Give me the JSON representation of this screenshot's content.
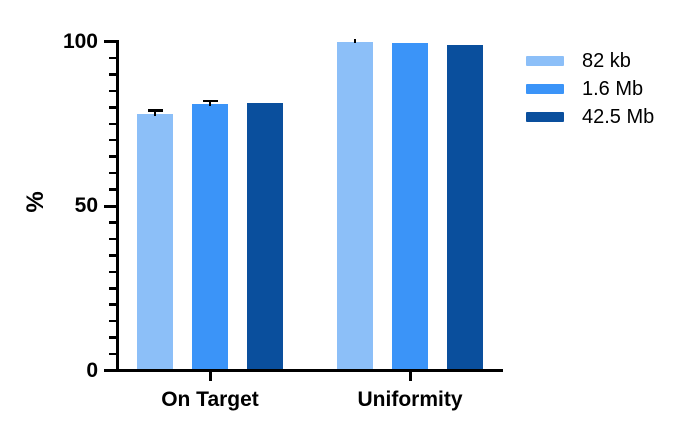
{
  "chart_data": {
    "type": "bar",
    "title": "",
    "xlabel": "",
    "ylabel": "%",
    "ylim": [
      0,
      100
    ],
    "yticks_major": [
      0,
      50,
      100
    ],
    "ytick_minor_step": 5,
    "grid": false,
    "legend_position": "right",
    "error_bars": "upper-sd",
    "background_color": "#ffffff",
    "axis_color": "#000000",
    "categories": [
      "On Target",
      "Uniformity"
    ],
    "series": [
      {
        "name": "82 kb",
        "color": "#8CBFF8",
        "values": [
          78,
          100
        ],
        "errors": [
          1,
          0.9
        ],
        "error_caps": [
          true,
          false
        ]
      },
      {
        "name": "1.6 Mb",
        "color": "#3B94F8",
        "values": [
          81,
          99.4
        ],
        "errors": [
          0.9,
          0
        ],
        "error_caps": [
          true,
          false
        ]
      },
      {
        "name": "42.5 Mb",
        "color": "#0A4F9D",
        "values": [
          81.3,
          98.8
        ],
        "errors": [
          0,
          0
        ],
        "error_caps": [
          false,
          false
        ]
      }
    ]
  }
}
